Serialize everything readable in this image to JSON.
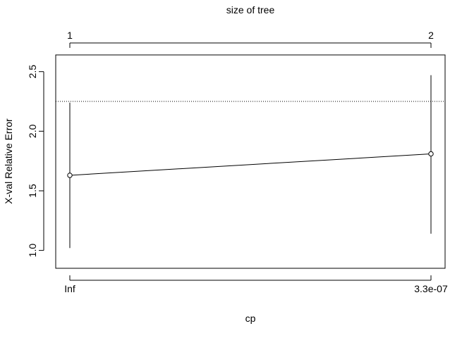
{
  "chart_data": {
    "type": "scatter",
    "title": "",
    "top_axis_label": "size of tree",
    "top_ticks": [
      "1",
      "2"
    ],
    "xlabel": "cp",
    "x_tick_labels": [
      "Inf",
      "3.3e-07"
    ],
    "ylabel": "X-val Relative Error",
    "ylim": [
      0.85,
      2.64
    ],
    "y_ticks": [
      1.0,
      1.5,
      2.0,
      2.5
    ],
    "y_tick_labels": [
      "1.0",
      "1.5",
      "2.0",
      "2.5"
    ],
    "series": [
      {
        "points": [
          {
            "x": "Inf",
            "size": 1,
            "y": 1.63,
            "ymin": 1.02,
            "ymax": 2.24
          },
          {
            "x": "3.3e-07",
            "size": 2,
            "y": 1.81,
            "ymin": 1.14,
            "ymax": 2.47
          }
        ]
      }
    ],
    "reference_line": {
      "y": 2.25,
      "style": "dotted"
    },
    "grid": false,
    "colors": {
      "line": "#000000",
      "background": "#ffffff"
    }
  }
}
